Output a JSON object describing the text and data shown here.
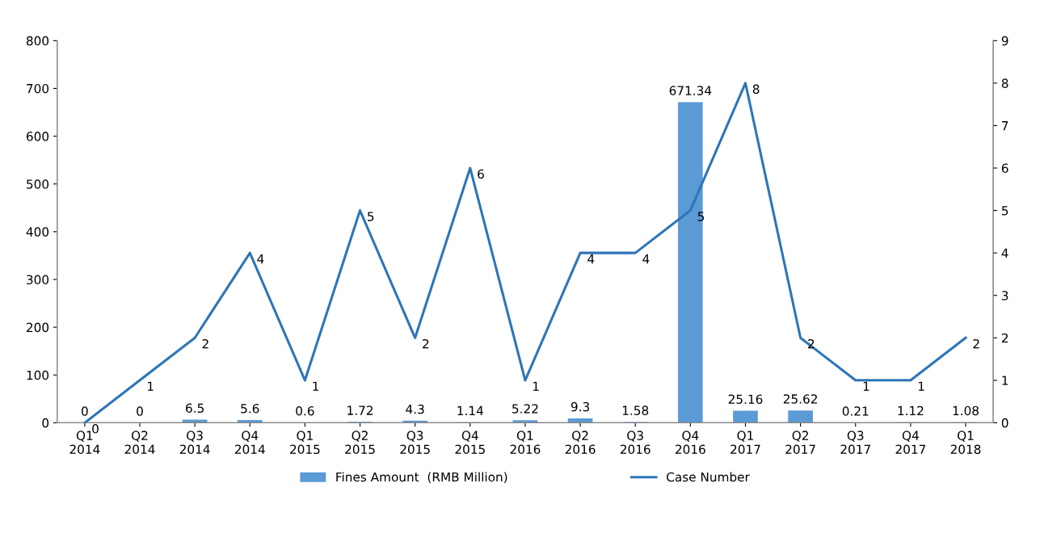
{
  "chart_data": {
    "type": "bar",
    "categories": [
      "Q1\n2014",
      "Q2\n2014",
      "Q3\n2014",
      "Q4\n2014",
      "Q1\n2015",
      "Q2\n2015",
      "Q3\n2015",
      "Q4\n2015",
      "Q1\n2016",
      "Q2\n2016",
      "Q3\n2016",
      "Q4\n2016",
      "Q1\n2017",
      "Q2\n2017",
      "Q3\n2017",
      "Q4\n2017",
      "Q1\n2018"
    ],
    "series": [
      {
        "name": "Fines Amount  (RMB Million)",
        "color": "#5b9bd5",
        "values": [
          0,
          0,
          6.5,
          5.6,
          0.6,
          1.72,
          4.3,
          1.14,
          5.22,
          9.3,
          1.58,
          671.34,
          25.16,
          25.62,
          0.21,
          1.12,
          1.08
        ]
      },
      {
        "name": "Case Number",
        "type": "line",
        "axis": "y2",
        "color": "#2e75b6",
        "values": [
          0,
          1,
          2,
          4,
          1,
          5,
          2,
          6,
          1,
          4,
          4,
          5,
          8,
          2,
          1,
          1,
          2
        ]
      }
    ],
    "ylim": [
      0,
      800
    ],
    "yticks": [
      0,
      100,
      200,
      300,
      400,
      500,
      600,
      700,
      800
    ],
    "y2lim": [
      0,
      9
    ],
    "y2ticks": [
      0,
      1,
      2,
      3,
      4,
      5,
      6,
      7,
      8,
      9
    ],
    "data_labels": true,
    "legend": "bottom",
    "grid": false,
    "marker": "none",
    "line_style": "solid"
  }
}
